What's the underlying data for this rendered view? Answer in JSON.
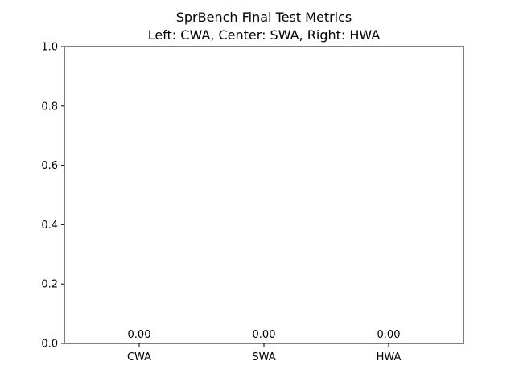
{
  "chart_data": {
    "type": "bar",
    "title": "SprBench Final Test Metrics",
    "subtitle": "Left: CWA, Center: SWA, Right: HWA",
    "categories": [
      "CWA",
      "SWA",
      "HWA"
    ],
    "values": [
      0.0,
      0.0,
      0.0
    ],
    "value_labels": [
      "0.00",
      "0.00",
      "0.00"
    ],
    "xlabel": "",
    "ylabel": "",
    "ylim": [
      0,
      1.0
    ],
    "yticks": [
      0.0,
      0.2,
      0.4,
      0.6,
      0.8,
      1.0
    ],
    "ytick_labels": [
      "0.0",
      "0.2",
      "0.4",
      "0.6",
      "0.8",
      "1.0"
    ],
    "grid": false,
    "legend": "none"
  }
}
